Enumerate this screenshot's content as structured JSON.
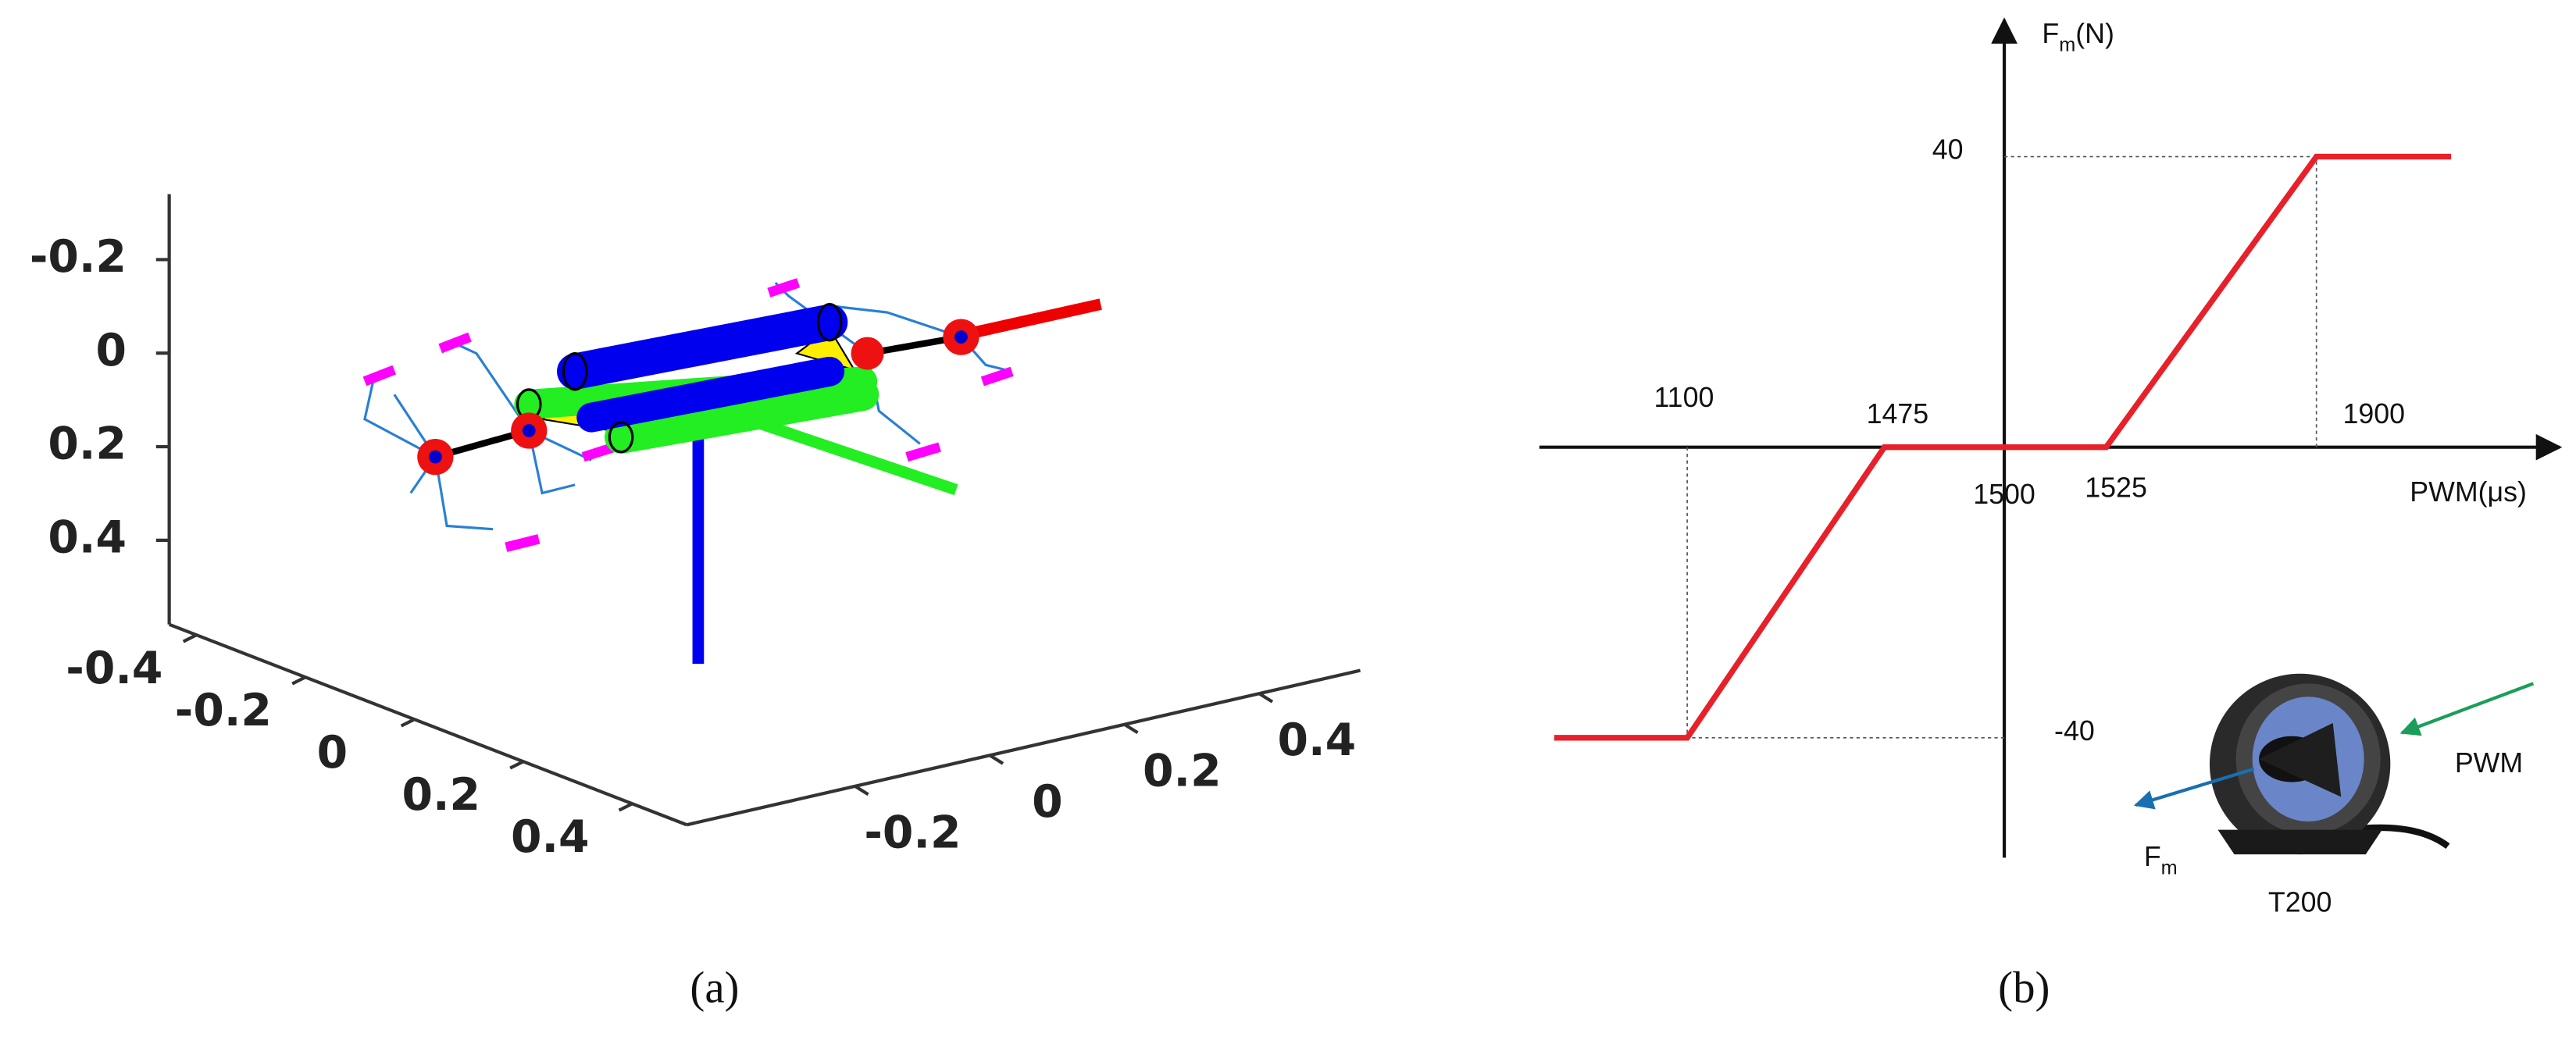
{
  "chart_data": [
    {
      "type": "scatter3d",
      "caption": "(a)",
      "xlim": [
        -0.45,
        0.5
      ],
      "xticks": [
        -0.4,
        -0.2,
        0,
        0.2,
        0.4
      ],
      "ylim": [
        -0.45,
        0.55
      ],
      "yticks": [
        -0.2,
        0,
        0.2,
        0.4
      ],
      "zlim": [
        -0.34,
        0.58
      ],
      "zticks": [
        -0.2,
        0,
        0.2,
        0.4
      ]
    },
    {
      "type": "line",
      "caption": "(b)",
      "y_label": {
        "main": "F",
        "sub": "m",
        "unit": "(N)"
      },
      "x_label": "PWM(μs)",
      "x": [
        null,
        1100,
        1475,
        1500,
        1525,
        1900,
        null
      ],
      "values": [
        -40,
        -40,
        0,
        0,
        0,
        40,
        40
      ],
      "color": "#e8202a",
      "ylim": [
        -56.5,
        58.8
      ],
      "yticks": [
        -40,
        40
      ],
      "annotations": {
        "input": "PWM",
        "output": {
          "main": "F",
          "sub": "m"
        },
        "device": "T200"
      }
    }
  ]
}
